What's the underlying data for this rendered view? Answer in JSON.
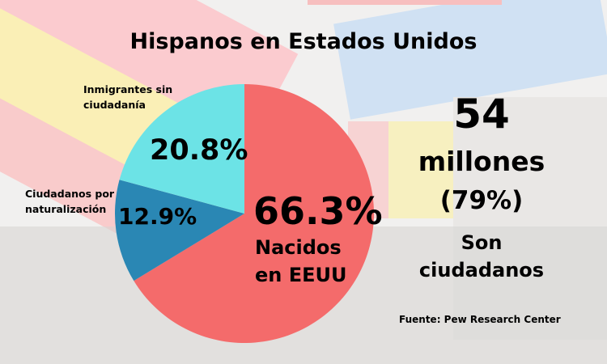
{
  "title": "Hispanos en Estados Unidos",
  "chart_data": {
    "type": "pie",
    "title": "Hispanos en Estados Unidos",
    "start": "top",
    "direction": "clockwise",
    "slices": [
      {
        "label": "Nacidos en EEUU",
        "value": 66.3,
        "display": "66.3%",
        "color": "#f46b6b"
      },
      {
        "label": "Ciudadanos por naturalización",
        "value": 12.9,
        "display": "12.9%",
        "color": "#2a87b4"
      },
      {
        "label": "Inmigrantes sin ciudadanía",
        "value": 20.8,
        "display": "20.8%",
        "color": "#6ce3e6"
      }
    ]
  },
  "labels": {
    "inmigrantes_line1": "Inmigrantes sin",
    "inmigrantes_line2": "ciudadanía",
    "ciudadanos_line1": "Ciudadanos por",
    "ciudadanos_line2": "naturalización",
    "nacidos_line1": "Nacidos",
    "nacidos_line2": "en EEUU"
  },
  "summary": {
    "number": "54",
    "unit": "millones",
    "percent": "(79%)",
    "line1": "Son",
    "line2": "ciudadanos"
  },
  "source": "Fuente: Pew Research Center"
}
